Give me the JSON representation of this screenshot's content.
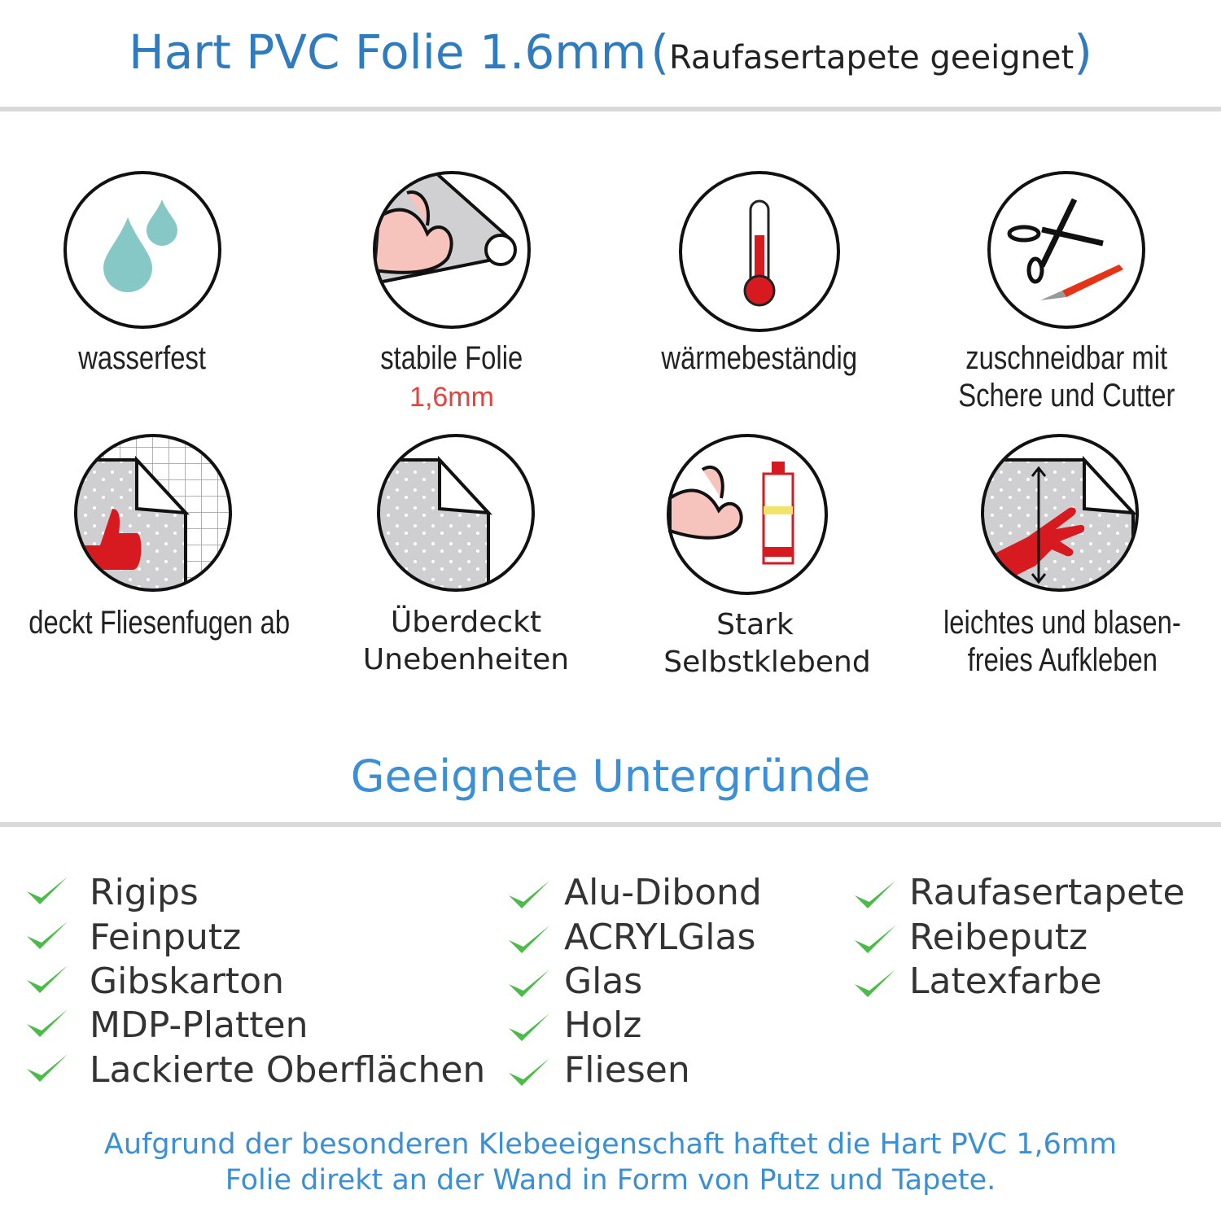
{
  "header": {
    "title": "Hart PVC Folie 1.6mm",
    "paren_open": "(",
    "subtitle": "Raufasertapete geeignet",
    "paren_close": ")"
  },
  "features": [
    {
      "icon": "water-drops-icon",
      "label": "wasserfest"
    },
    {
      "icon": "strong-film-icon",
      "label": "stabile Folie",
      "sublabel": "1,6mm"
    },
    {
      "icon": "thermometer-icon",
      "label": "wärmebeständig"
    },
    {
      "icon": "scissors-cutter-icon",
      "label_line1": "zuschneidbar mit",
      "label_line2": "Schere und Cutter"
    },
    {
      "icon": "tile-cover-icon",
      "label": "deckt Fliesenfugen ab"
    },
    {
      "icon": "uneven-cover-icon",
      "label_line1": "Überdeckt",
      "label_line2": "Unebenheiten"
    },
    {
      "icon": "strong-adhesive-icon",
      "label_line1": "Stark",
      "label_line2": "Selbstklebend"
    },
    {
      "icon": "hand-apply-icon",
      "label_line1": "leichtes und blasen-",
      "label_line2": "freies Aufkleben"
    }
  ],
  "section": {
    "title": "Geeignete Untergründe"
  },
  "surfaces": {
    "col1": [
      "Rigips",
      "Feinputz",
      "Gibskarton",
      "MDP-Platten",
      "Lackierte Oberflächen"
    ],
    "col2": [
      "Alu-Dibond",
      "ACRYLGlas",
      "Glas",
      "Holz",
      "Fliesen"
    ],
    "col3": [
      "Raufasertapete",
      "Reibeputz",
      "Latexfarbe"
    ]
  },
  "footer": {
    "line1": "Aufgrund der besonderen Klebeeigenschaft haftet die Hart PVC 1,6mm",
    "line2": "Folie direkt an der Wand in Form von Putz und Tapete."
  },
  "colors": {
    "blue": "#2f7bbf",
    "check_green": "#4cbb4a",
    "accent_red": "#e8413c",
    "rule_gray": "#d9d9d9"
  }
}
